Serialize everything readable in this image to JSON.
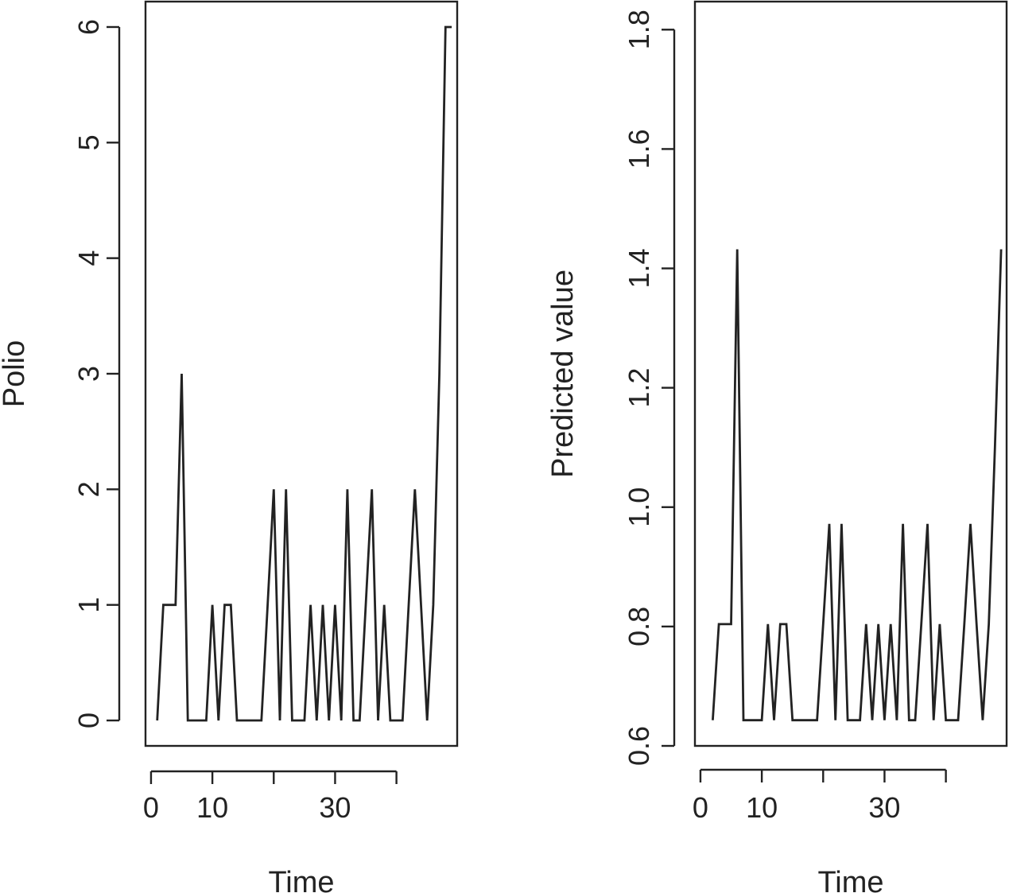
{
  "chart_data": [
    {
      "type": "line",
      "xlabel": "Time",
      "ylabel": "Polio",
      "xticks": [
        0,
        10,
        30
      ],
      "yticks": [
        0,
        1,
        2,
        3,
        4,
        5,
        6
      ],
      "xlim": [
        -0.9,
        49.9
      ],
      "ylim": [
        -0.22,
        6.22
      ],
      "x": [
        1,
        2,
        3,
        4,
        5,
        6,
        7,
        8,
        9,
        10,
        11,
        12,
        13,
        14,
        15,
        16,
        17,
        18,
        19,
        20,
        21,
        22,
        23,
        24,
        25,
        26,
        27,
        28,
        29,
        30,
        31,
        32,
        33,
        34,
        35,
        36,
        37,
        38,
        39,
        40,
        41,
        42,
        43,
        44,
        45,
        46,
        47,
        48,
        49
      ],
      "series": [
        {
          "values": [
            0,
            1,
            1,
            1,
            3,
            0,
            0,
            0,
            0,
            1,
            0,
            1,
            1,
            0,
            0,
            0,
            0,
            0,
            1,
            2,
            0,
            2,
            0,
            0,
            0,
            1,
            0,
            1,
            0,
            1,
            0,
            2,
            0,
            0,
            1,
            2,
            0,
            1,
            0,
            0,
            0,
            1,
            2,
            1,
            0,
            1,
            3,
            6,
            6
          ]
        }
      ]
    },
    {
      "type": "line",
      "xlabel": "Time",
      "ylabel": "Predicted value",
      "xticks": [
        0,
        10,
        30
      ],
      "yticks": [
        "0.6",
        "0.8",
        "1.0",
        "1.2",
        "1.4",
        "1.6",
        "1.8"
      ],
      "xlim": [
        -0.9,
        49.9
      ],
      "ylim": [
        0.6,
        1.847
      ],
      "x": [
        2,
        3,
        4,
        5,
        6,
        7,
        8,
        9,
        10,
        11,
        12,
        13,
        14,
        15,
        16,
        17,
        18,
        19,
        20,
        21,
        22,
        23,
        24,
        25,
        26,
        27,
        28,
        29,
        30,
        31,
        32,
        33,
        34,
        35,
        36,
        37,
        38,
        39,
        40,
        41,
        42,
        43,
        44,
        45,
        46,
        47,
        48,
        49
      ],
      "series": [
        {
          "values": [
            0.643,
            0.804,
            0.804,
            0.804,
            1.432,
            0.643,
            0.643,
            0.643,
            0.643,
            0.804,
            0.643,
            0.804,
            0.804,
            0.643,
            0.643,
            0.643,
            0.643,
            0.643,
            0.804,
            0.972,
            0.643,
            0.972,
            0.643,
            0.643,
            0.643,
            0.804,
            0.643,
            0.804,
            0.643,
            0.804,
            0.643,
            0.972,
            0.643,
            0.643,
            0.804,
            0.972,
            0.643,
            0.804,
            0.643,
            0.643,
            0.643,
            0.804,
            0.972,
            0.804,
            0.643,
            0.804,
            1.1,
            1.432
          ]
        }
      ]
    }
  ]
}
